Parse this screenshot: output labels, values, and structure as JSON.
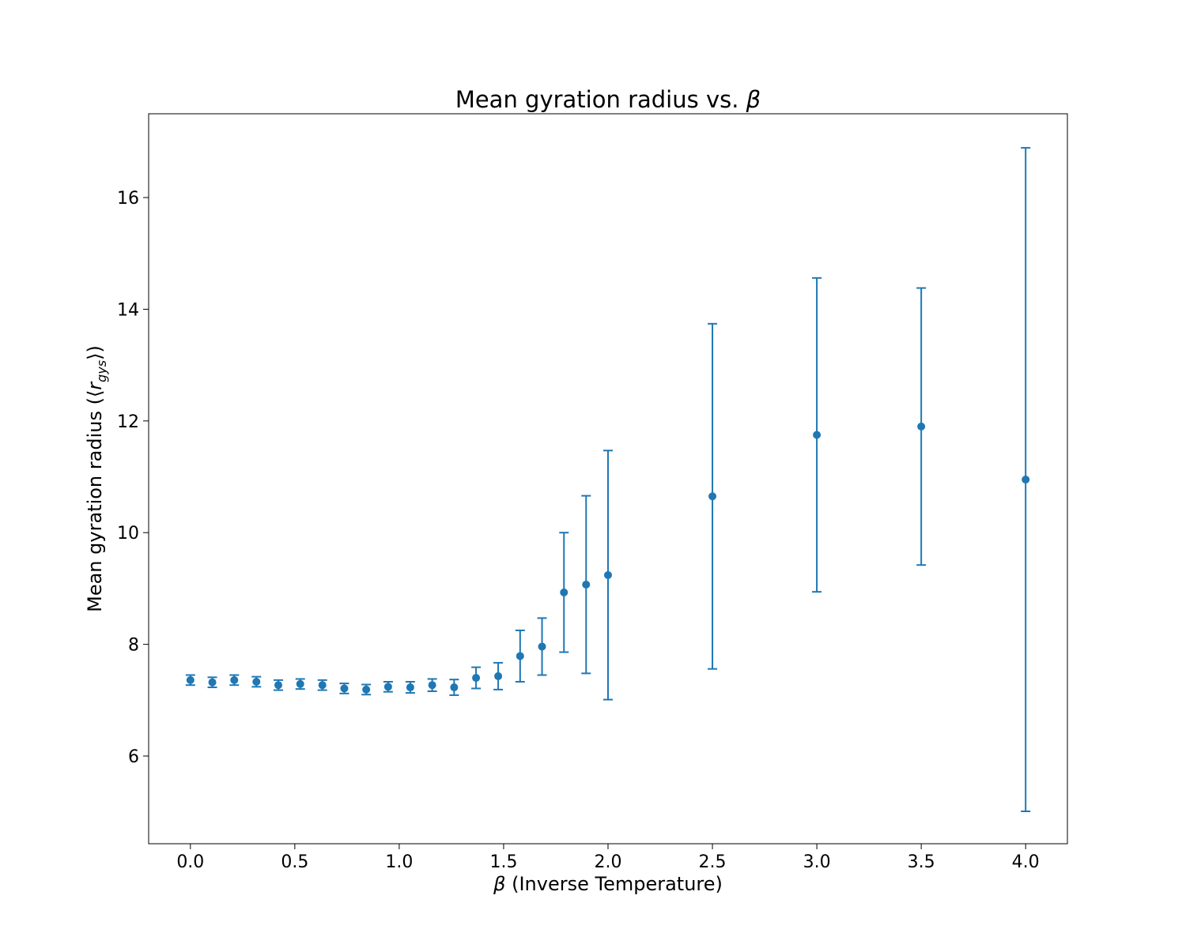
{
  "chart_data": {
    "type": "scatter",
    "title": "Mean gyration radius vs. ",
    "title_symbol": "β",
    "xlabel": "(Inverse Temperature)",
    "xlabel_symbol": "β",
    "ylabel_prefix": "Mean gyration radius (⟨",
    "ylabel_var": "r",
    "ylabel_sub": "gys",
    "ylabel_suffix": "⟩)",
    "xlim": [
      -0.2,
      4.2
    ],
    "ylim": [
      4.43,
      17.5
    ],
    "xticks": [
      0.0,
      0.5,
      1.0,
      1.5,
      2.0,
      2.5,
      3.0,
      3.5,
      4.0
    ],
    "xtick_labels": [
      "0.0",
      "0.5",
      "1.0",
      "1.5",
      "2.0",
      "2.5",
      "3.0",
      "3.5",
      "4.0"
    ],
    "yticks": [
      6,
      8,
      10,
      12,
      14,
      16
    ],
    "ytick_labels": [
      "6",
      "8",
      "10",
      "12",
      "14",
      "16"
    ],
    "grid": false,
    "color": "#1f77b4",
    "points": [
      {
        "x": 0.0,
        "y": 7.36,
        "err": 0.09
      },
      {
        "x": 0.105,
        "y": 7.32,
        "err": 0.09
      },
      {
        "x": 0.21,
        "y": 7.36,
        "err": 0.09
      },
      {
        "x": 0.316,
        "y": 7.33,
        "err": 0.09
      },
      {
        "x": 0.421,
        "y": 7.27,
        "err": 0.09
      },
      {
        "x": 0.526,
        "y": 7.29,
        "err": 0.09
      },
      {
        "x": 0.632,
        "y": 7.27,
        "err": 0.09
      },
      {
        "x": 0.737,
        "y": 7.21,
        "err": 0.09
      },
      {
        "x": 0.842,
        "y": 7.19,
        "err": 0.09
      },
      {
        "x": 0.947,
        "y": 7.24,
        "err": 0.09
      },
      {
        "x": 1.053,
        "y": 7.23,
        "err": 0.1
      },
      {
        "x": 1.158,
        "y": 7.27,
        "err": 0.11
      },
      {
        "x": 1.263,
        "y": 7.23,
        "err": 0.14
      },
      {
        "x": 1.368,
        "y": 7.4,
        "err": 0.19
      },
      {
        "x": 1.474,
        "y": 7.43,
        "err": 0.24
      },
      {
        "x": 1.579,
        "y": 7.79,
        "err": 0.46
      },
      {
        "x": 1.684,
        "y": 7.96,
        "err": 0.51
      },
      {
        "x": 1.789,
        "y": 8.93,
        "err": 1.07
      },
      {
        "x": 1.895,
        "y": 9.07,
        "err": 1.59
      },
      {
        "x": 2.0,
        "y": 9.24,
        "err": 2.23
      },
      {
        "x": 2.5,
        "y": 10.65,
        "err": 3.09
      },
      {
        "x": 3.0,
        "y": 11.75,
        "err": 2.81
      },
      {
        "x": 3.5,
        "y": 11.9,
        "err": 2.48
      },
      {
        "x": 4.0,
        "y": 10.95,
        "err": 5.94
      }
    ]
  }
}
